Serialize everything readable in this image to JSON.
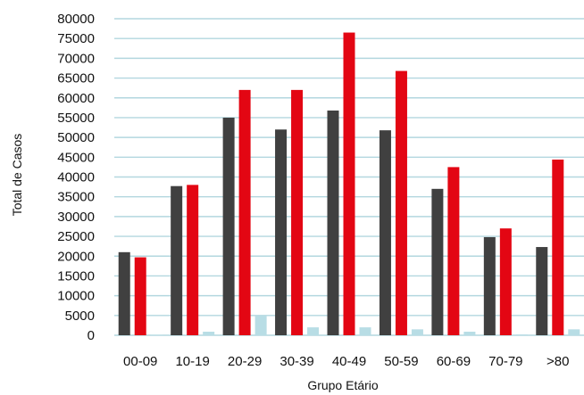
{
  "chart_data": {
    "type": "bar",
    "title": "",
    "xlabel": "Grupo Etário",
    "ylabel": "Total de Casos",
    "ylim": [
      0,
      80000
    ],
    "yticks": [
      0,
      5000,
      10000,
      15000,
      20000,
      25000,
      30000,
      35000,
      40000,
      45000,
      50000,
      55000,
      60000,
      65000,
      70000,
      75000,
      80000
    ],
    "grid": true,
    "legend": "none",
    "categories": [
      "00-09",
      "10-19",
      "20-29",
      "30-39",
      "40-49",
      "50-59",
      "60-69",
      "70-79",
      ">80"
    ],
    "series": [
      {
        "color": "#404040",
        "values": [
          21000,
          37700,
          55000,
          52000,
          56800,
          51800,
          37000,
          24800,
          22300
        ]
      },
      {
        "color": "#e30613",
        "values": [
          19700,
          38000,
          62000,
          62000,
          76500,
          66800,
          42500,
          27000,
          44400
        ]
      },
      {
        "color": "#b8dde5",
        "values": [
          100,
          900,
          5000,
          2000,
          2000,
          1500,
          900,
          200,
          1500
        ]
      }
    ]
  }
}
